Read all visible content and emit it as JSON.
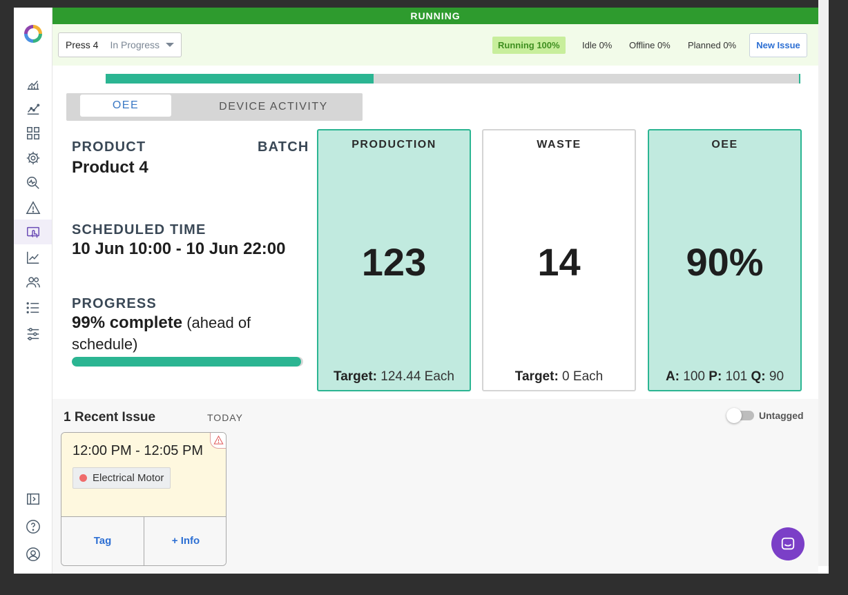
{
  "status_bar": {
    "label": "RUNNING",
    "color": "#2e9b2e"
  },
  "header": {
    "press_name": "Press 4",
    "press_state": "In Progress",
    "running_pct": "Running 100%",
    "idle_pct": "Idle 0%",
    "offline_pct": "Offline 0%",
    "planned_pct": "Planned 0%",
    "new_issue_label": "New Issue"
  },
  "timeline": {
    "progress_fraction": 0.386,
    "fill_color": "#2bb592"
  },
  "tabs": [
    {
      "label": "OEE",
      "active": true
    },
    {
      "label": "DEVICE ACTIVITY",
      "active": false
    }
  ],
  "info": {
    "product_label": "PRODUCT",
    "product_value": "Product 4",
    "batch_label": "BATCH",
    "scheduled_label": "SCHEDULED TIME",
    "scheduled_value": "10 Jun 10:00 - 10 Jun 22:00",
    "progress_label": "PROGRESS",
    "progress_value": "99% complete",
    "progress_note": "(ahead of schedule)",
    "progress_fraction": 0.99
  },
  "cards": {
    "production": {
      "title": "PRODUCTION",
      "value": "123",
      "target_label": "Target:",
      "target_value": "124.44 Each"
    },
    "waste": {
      "title": "WASTE",
      "value": "14",
      "target_label": "Target:",
      "target_value": "0 Each"
    },
    "oee": {
      "title": "OEE",
      "value": "90%",
      "a_label": "A:",
      "a_value": "100",
      "p_label": "P:",
      "p_value": "101",
      "q_label": "Q:",
      "q_value": "90"
    }
  },
  "issues": {
    "title": "1 Recent Issue",
    "period": "TODAY",
    "toggle_label": "Untagged",
    "toggle_on": false,
    "items": [
      {
        "time": "12:00 PM - 12:05 PM",
        "tag": "Electrical Motor",
        "tag_color": "#ef6b6b",
        "tag_button": "Tag",
        "info_button": "+ Info"
      }
    ]
  },
  "colors": {
    "accent_green": "#2bb592",
    "link_blue": "#2d6fd3",
    "chat_purple": "#7b3fc7"
  },
  "sidebar_icons": [
    "dashboard-chart-icon",
    "analytics-icon",
    "grid-icon",
    "settings-gear-icon",
    "monitor-search-icon",
    "alert-icon",
    "touch-device-icon",
    "trend-icon",
    "users-icon",
    "list-icon",
    "sliders-icon",
    "expand-sidebar-icon",
    "help-icon",
    "account-icon"
  ]
}
